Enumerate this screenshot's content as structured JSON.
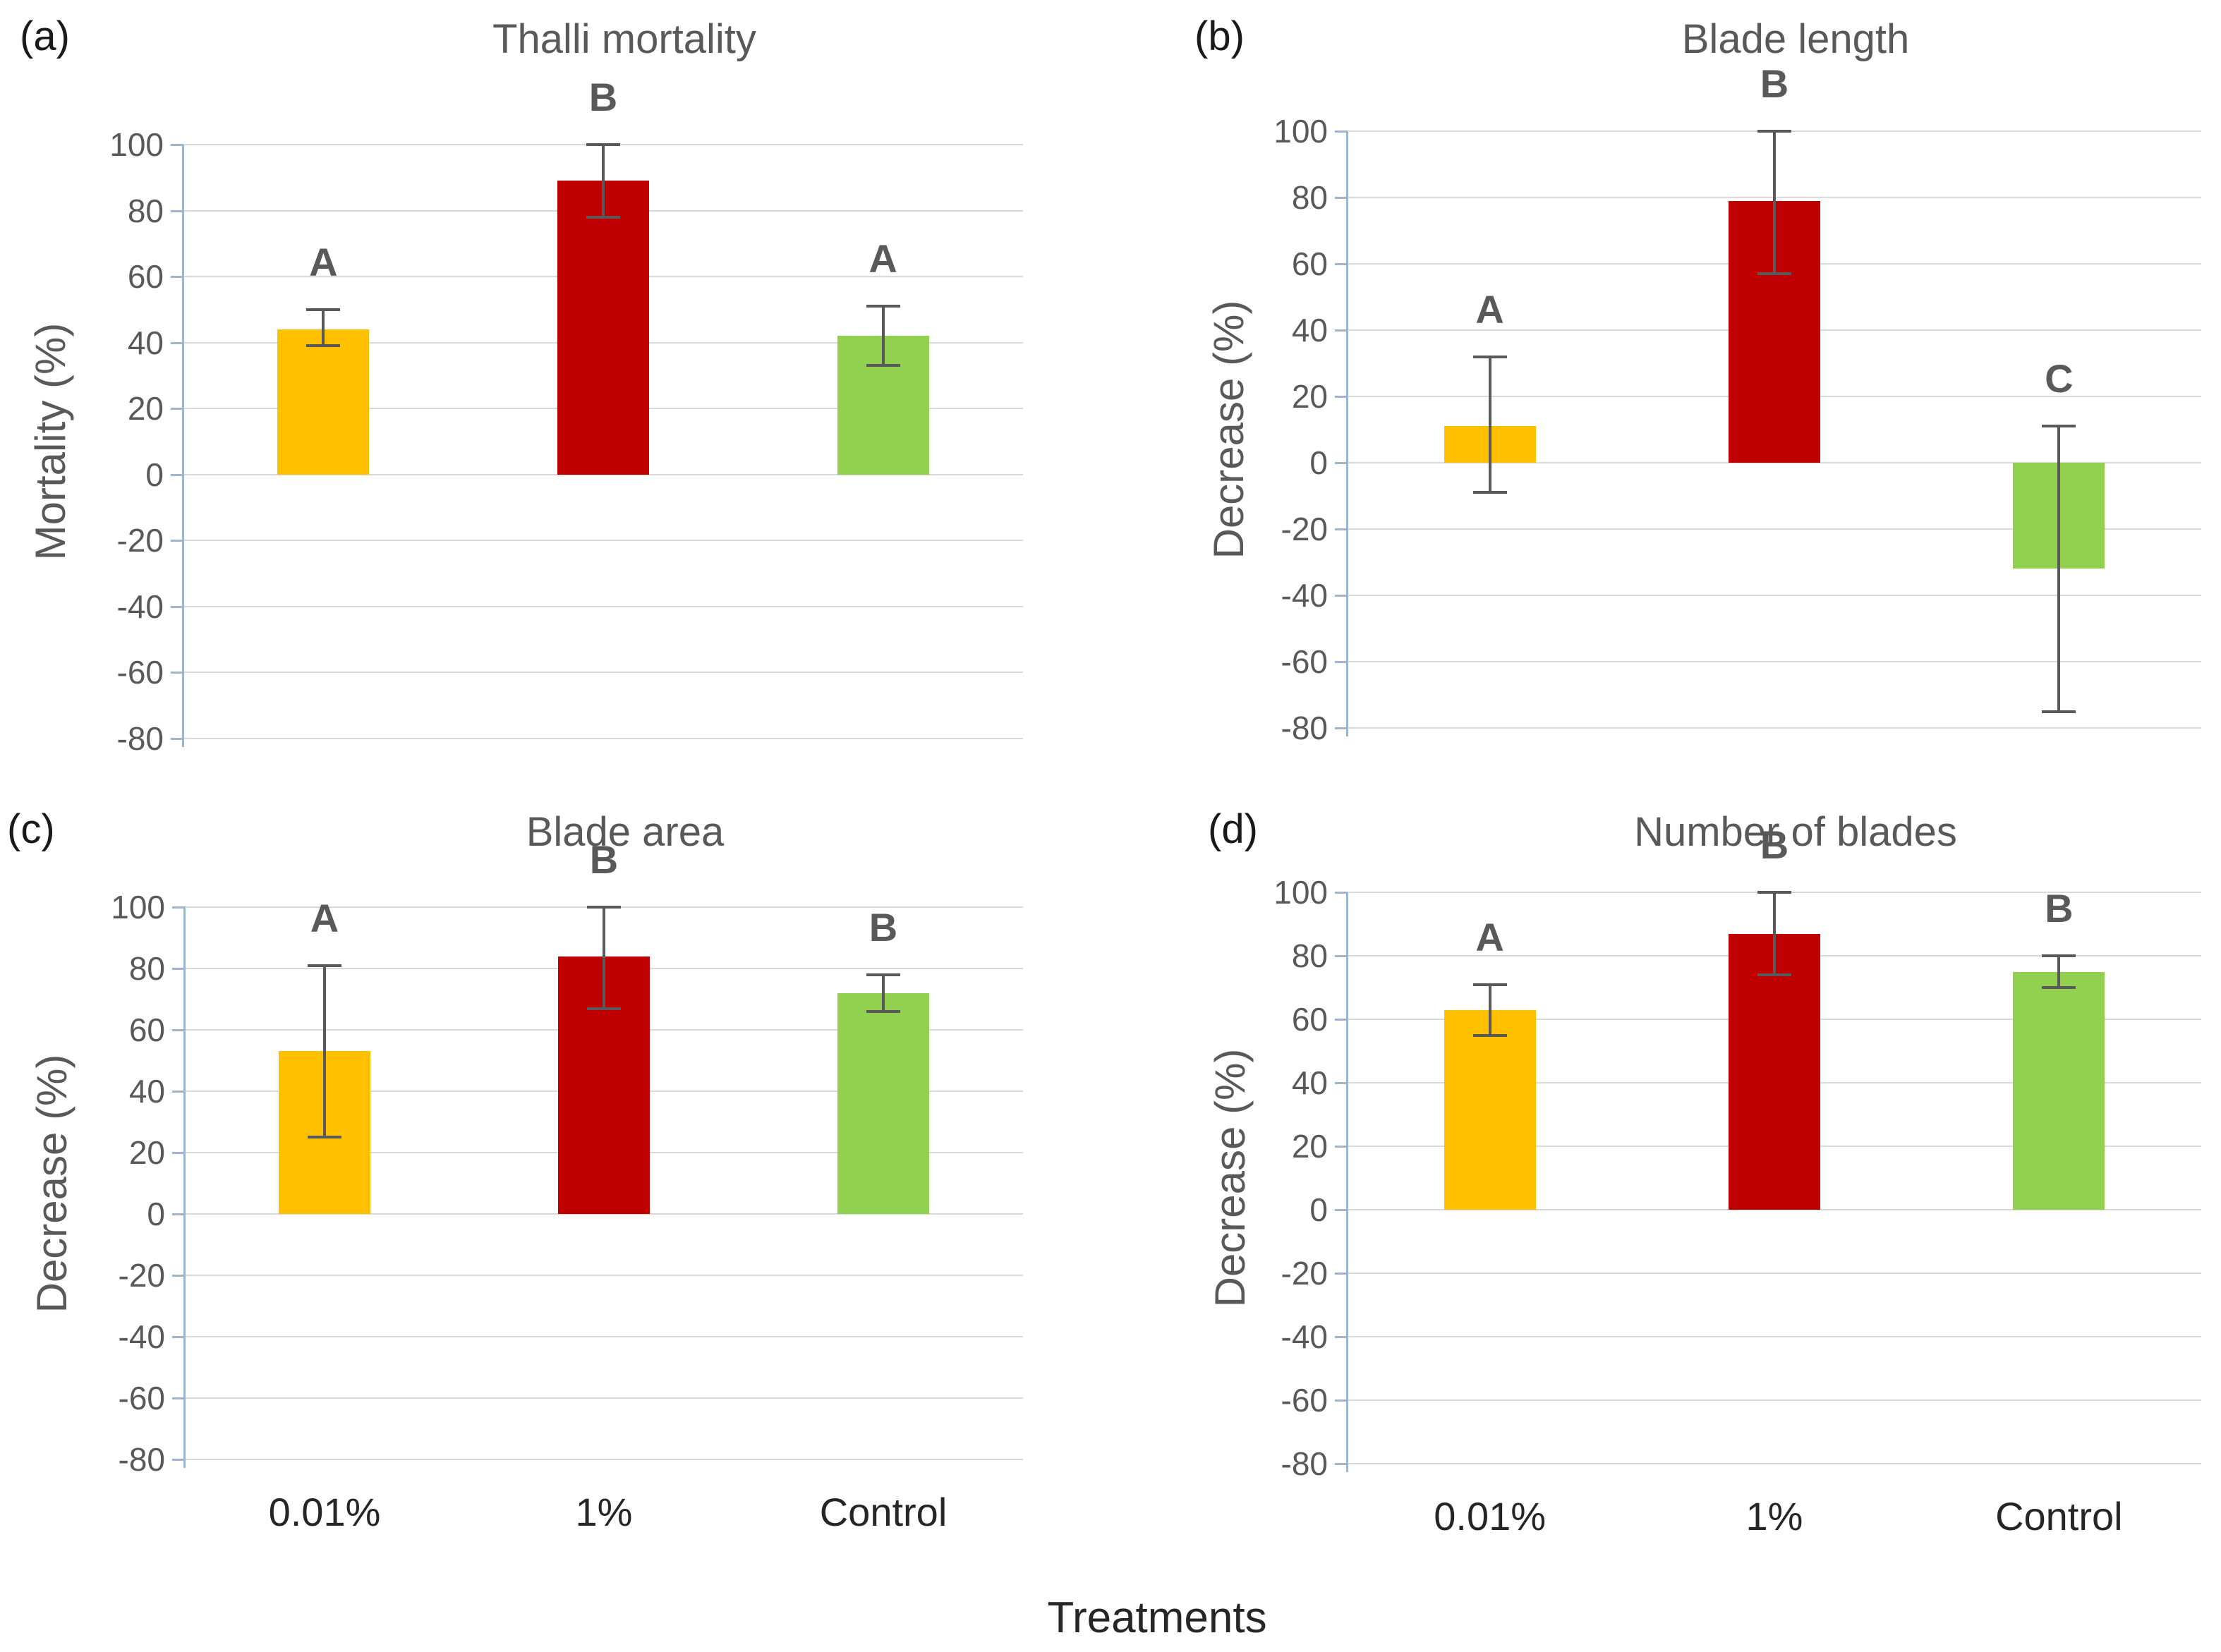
{
  "figure": {
    "background": "#FFFFFF",
    "xlabel": "Treatments",
    "series_colors": [
      "#FFC000",
      "#C00000",
      "#92D050"
    ],
    "error_bar_color": "#595959",
    "gridline_color": "#D9D9D9",
    "axis_color": "#9DB6CE",
    "text_color": "#595959"
  },
  "chart_data": [
    {
      "type": "bar",
      "panel_label": "(a)",
      "title": "Thalli mortality",
      "ylabel": "Mortality (%)",
      "xlabel": "",
      "categories": [
        "0.01%",
        "1%",
        "Control"
      ],
      "values": [
        44,
        89,
        42
      ],
      "error_low": [
        39,
        78,
        33
      ],
      "error_high": [
        50,
        100,
        51
      ],
      "sig_letters": [
        "A",
        "B",
        "A"
      ],
      "ylim": [
        -80,
        100
      ],
      "yticks": [
        100,
        80,
        60,
        40,
        20,
        0,
        -20,
        -40,
        -60,
        -80
      ],
      "grid": true,
      "legend": "none",
      "show_x_tick_labels": false
    },
    {
      "type": "bar",
      "panel_label": "(b)",
      "title": "Blade length",
      "ylabel": "Decrease  (%)",
      "xlabel": "",
      "categories": [
        "0.01%",
        "1%",
        "Control"
      ],
      "values": [
        11,
        79,
        -32
      ],
      "error_low": [
        -9,
        57,
        -75
      ],
      "error_high": [
        32,
        100,
        11
      ],
      "sig_letters": [
        "A",
        "B",
        "C"
      ],
      "ylim": [
        -80,
        100
      ],
      "yticks": [
        100,
        80,
        60,
        40,
        20,
        0,
        -20,
        -40,
        -60,
        -80
      ],
      "grid": true,
      "legend": "none",
      "show_x_tick_labels": false
    },
    {
      "type": "bar",
      "panel_label": "(c)",
      "title": "Blade area",
      "ylabel": "Decrease  (%)",
      "xlabel": "",
      "categories": [
        "0.01%",
        "1%",
        "Control"
      ],
      "values": [
        53,
        84,
        72
      ],
      "error_low": [
        25,
        67,
        66
      ],
      "error_high": [
        81,
        100,
        78
      ],
      "sig_letters": [
        "A",
        "B",
        "B"
      ],
      "ylim": [
        -80,
        100
      ],
      "yticks": [
        100,
        80,
        60,
        40,
        20,
        0,
        -20,
        -40,
        -60,
        -80
      ],
      "grid": true,
      "legend": "none",
      "show_x_tick_labels": true
    },
    {
      "type": "bar",
      "panel_label": "(d)",
      "title": "Number of blades",
      "ylabel": "Decrease  (%)",
      "xlabel": "",
      "categories": [
        "0.01%",
        "1%",
        "Control"
      ],
      "values": [
        63,
        87,
        75
      ],
      "error_low": [
        55,
        74,
        70
      ],
      "error_high": [
        71,
        100,
        80
      ],
      "sig_letters": [
        "A",
        "B",
        "B"
      ],
      "ylim": [
        -80,
        100
      ],
      "yticks": [
        100,
        80,
        60,
        40,
        20,
        0,
        -20,
        -40,
        -60,
        -80
      ],
      "grid": true,
      "legend": "none",
      "show_x_tick_labels": true
    }
  ]
}
